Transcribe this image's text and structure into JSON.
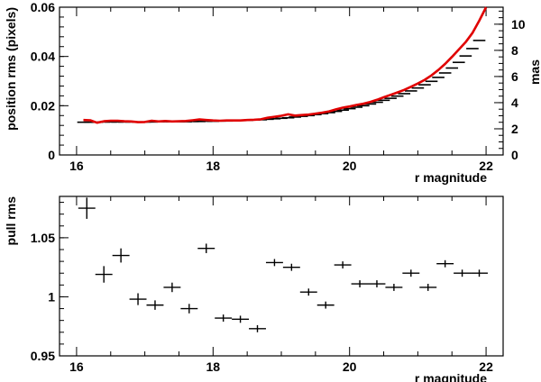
{
  "chart_data": [
    {
      "type": "scatter",
      "panel": "top",
      "xlabel": "r magnitude",
      "ylabel": "position rms (pixels)",
      "y2label": "mas",
      "xlim": [
        15.75,
        22.25
      ],
      "ylim": [
        0,
        0.06
      ],
      "y2lim": [
        0,
        11.3
      ],
      "xticks": [
        16,
        18,
        20,
        22
      ],
      "xtick_labels": [
        "16",
        "18",
        "20",
        "22"
      ],
      "yticks": [
        0,
        0.02,
        0.04,
        0.06
      ],
      "ytick_labels": [
        "0",
        "0.02",
        "0.04",
        "0.06"
      ],
      "y2ticks": [
        0,
        2,
        4,
        6,
        8,
        10
      ],
      "y2tick_labels": [
        "0",
        "2",
        "4",
        "6",
        "8",
        "10"
      ],
      "grid": false,
      "series": [
        {
          "style": "steps",
          "color": "#000000",
          "x": [
            16.1,
            16.2,
            16.3,
            16.4,
            16.5,
            16.6,
            16.7,
            16.8,
            16.9,
            17.0,
            17.1,
            17.2,
            17.3,
            17.4,
            17.5,
            17.6,
            17.7,
            17.8,
            17.9,
            18.0,
            18.1,
            18.2,
            18.3,
            18.4,
            18.5,
            18.6,
            18.7,
            18.8,
            18.9,
            19.0,
            19.1,
            19.2,
            19.3,
            19.4,
            19.5,
            19.6,
            19.7,
            19.8,
            19.9,
            20.0,
            20.1,
            20.2,
            20.3,
            20.4,
            20.5,
            20.6,
            20.7,
            20.8,
            20.9,
            21.0,
            21.1,
            21.2,
            21.3,
            21.4,
            21.5,
            21.6,
            21.7,
            21.8,
            21.9
          ],
          "y": [
            0.0133,
            0.0133,
            0.0133,
            0.0134,
            0.0134,
            0.0134,
            0.0134,
            0.0134,
            0.0134,
            0.0134,
            0.0134,
            0.0135,
            0.0135,
            0.0135,
            0.0135,
            0.0135,
            0.0136,
            0.0136,
            0.0137,
            0.0137,
            0.0138,
            0.0138,
            0.0139,
            0.014,
            0.0141,
            0.0142,
            0.0143,
            0.0145,
            0.0147,
            0.0149,
            0.0151,
            0.0154,
            0.0157,
            0.016,
            0.0164,
            0.0168,
            0.0172,
            0.0177,
            0.0182,
            0.0188,
            0.0194,
            0.02,
            0.0207,
            0.0214,
            0.0222,
            0.023,
            0.0239,
            0.0249,
            0.026,
            0.0272,
            0.0285,
            0.0299,
            0.0315,
            0.0333,
            0.0353,
            0.0376,
            0.0402,
            0.0432,
            0.0465
          ]
        },
        {
          "style": "line",
          "color": "#e00000",
          "x": [
            16.1,
            16.2,
            16.3,
            16.4,
            16.5,
            16.6,
            16.7,
            16.8,
            16.9,
            17.0,
            17.1,
            17.2,
            17.3,
            17.4,
            17.5,
            17.6,
            17.7,
            17.8,
            17.9,
            18.0,
            18.1,
            18.2,
            18.3,
            18.4,
            18.5,
            18.6,
            18.7,
            18.8,
            18.9,
            19.0,
            19.1,
            19.2,
            19.3,
            19.4,
            19.5,
            19.6,
            19.7,
            19.8,
            19.9,
            20.0,
            20.1,
            20.2,
            20.3,
            20.4,
            20.5,
            20.6,
            20.7,
            20.8,
            20.9,
            21.0,
            21.1,
            21.2,
            21.3,
            21.4,
            21.5,
            21.6,
            21.7,
            21.8,
            21.9,
            22.0
          ],
          "y": [
            0.0142,
            0.0141,
            0.0131,
            0.0137,
            0.0139,
            0.0139,
            0.0137,
            0.0136,
            0.0133,
            0.0134,
            0.0139,
            0.0136,
            0.0138,
            0.0136,
            0.0137,
            0.0138,
            0.0141,
            0.0144,
            0.0142,
            0.014,
            0.0139,
            0.014,
            0.014,
            0.014,
            0.0142,
            0.0143,
            0.0145,
            0.0151,
            0.0155,
            0.0159,
            0.0165,
            0.016,
            0.0162,
            0.0164,
            0.0168,
            0.0172,
            0.0177,
            0.0185,
            0.0192,
            0.0197,
            0.0203,
            0.0208,
            0.0215,
            0.0224,
            0.0234,
            0.0244,
            0.0254,
            0.0264,
            0.0277,
            0.029,
            0.0305,
            0.0323,
            0.0345,
            0.037,
            0.0398,
            0.0428,
            0.0458,
            0.0495,
            0.0545,
            0.06
          ]
        }
      ]
    },
    {
      "type": "scatter",
      "panel": "bottom",
      "xlabel": "r magnitude",
      "ylabel": "pull rms",
      "xlim": [
        15.75,
        22.25
      ],
      "ylim": [
        0.95,
        1.085
      ],
      "xticks": [
        16,
        18,
        20,
        22
      ],
      "xtick_labels": [
        "16",
        "18",
        "20",
        "22"
      ],
      "yticks": [
        0.95,
        1,
        1.05
      ],
      "ytick_labels": [
        "0.95",
        "1",
        "1.05"
      ],
      "grid": false,
      "series": [
        {
          "style": "errorbars",
          "color": "#000000",
          "x": [
            16.15,
            16.4,
            16.65,
            16.9,
            17.15,
            17.4,
            17.65,
            17.9,
            18.15,
            18.4,
            18.65,
            18.9,
            19.15,
            19.4,
            19.65,
            19.9,
            20.15,
            20.4,
            20.65,
            20.9,
            21.15,
            21.4,
            21.65,
            21.9
          ],
          "xerr": [
            0.125,
            0.125,
            0.125,
            0.125,
            0.125,
            0.125,
            0.125,
            0.125,
            0.125,
            0.125,
            0.125,
            0.125,
            0.125,
            0.125,
            0.125,
            0.125,
            0.125,
            0.125,
            0.125,
            0.125,
            0.125,
            0.125,
            0.125,
            0.125
          ],
          "y": [
            1.075,
            1.019,
            1.035,
            0.998,
            0.993,
            1.008,
            0.99,
            1.041,
            0.982,
            0.981,
            0.973,
            1.029,
            1.025,
            1.004,
            0.993,
            1.027,
            1.011,
            1.011,
            1.008,
            1.02,
            1.008,
            1.028,
            1.02,
            1.02
          ],
          "yerr": [
            0.009,
            0.007,
            0.006,
            0.005,
            0.004,
            0.004,
            0.004,
            0.004,
            0.003,
            0.003,
            0.003,
            0.003,
            0.003,
            0.003,
            0.003,
            0.003,
            0.003,
            0.003,
            0.003,
            0.003,
            0.003,
            0.003,
            0.003,
            0.003
          ]
        }
      ]
    }
  ]
}
